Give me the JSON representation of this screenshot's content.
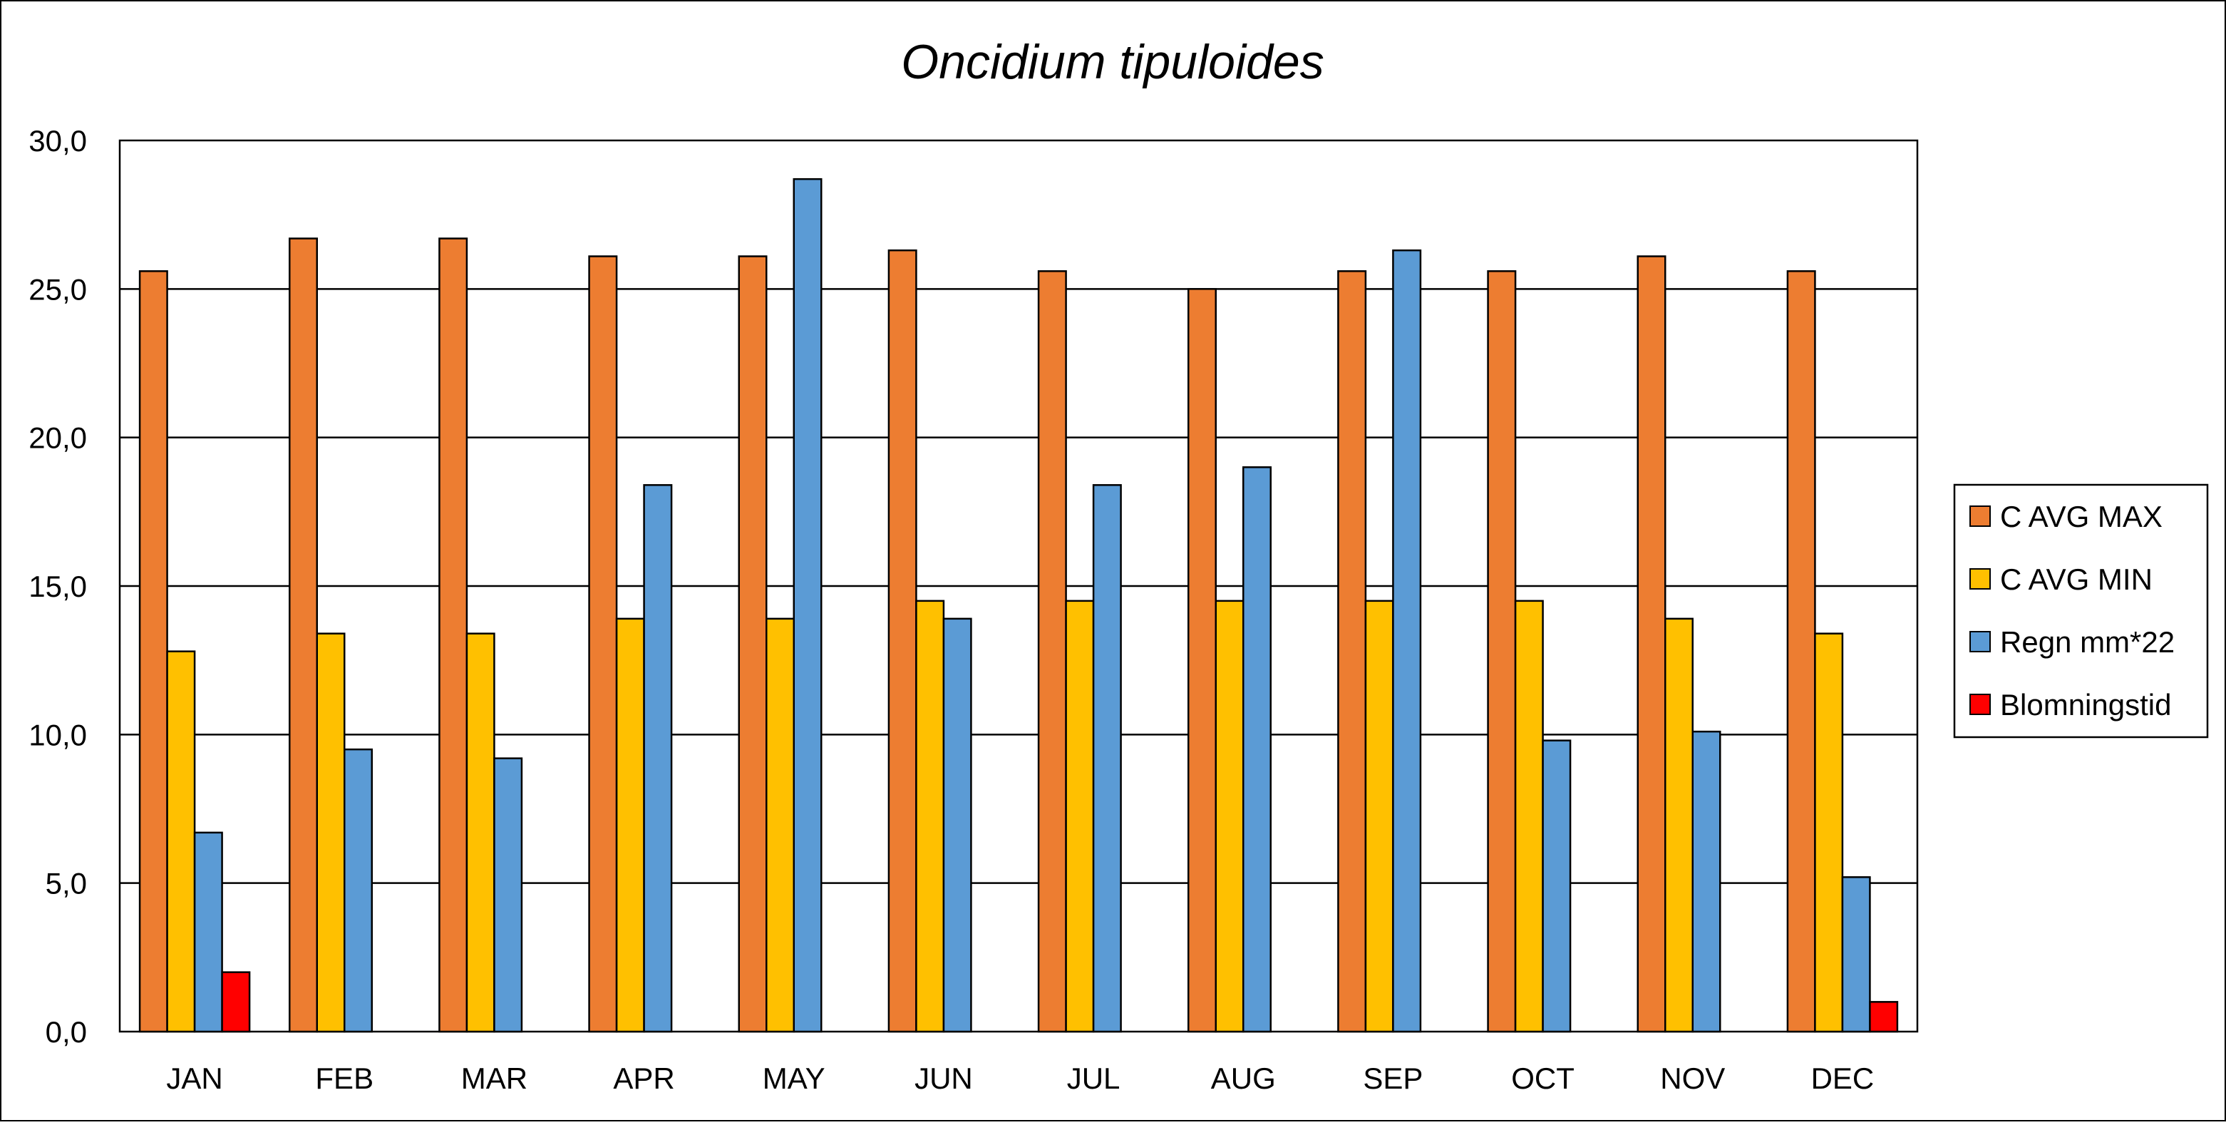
{
  "chart_data": {
    "type": "bar",
    "title": "Oncidium tipuloides",
    "xlabel": "",
    "ylabel": "",
    "categories": [
      "JAN",
      "FEB",
      "MAR",
      "APR",
      "MAY",
      "JUN",
      "JUL",
      "AUG",
      "SEP",
      "OCT",
      "NOV",
      "DEC"
    ],
    "ylim": [
      0,
      30
    ],
    "yticks": [
      "0,0",
      "5,0",
      "10,0",
      "15,0",
      "20,0",
      "25,0",
      "30,0"
    ],
    "grid": true,
    "legend_position": "right",
    "series": [
      {
        "name": "C AVG MAX",
        "color": "#ED7D31",
        "values": [
          25.6,
          26.7,
          26.7,
          26.1,
          26.1,
          26.3,
          25.6,
          25.0,
          25.6,
          25.6,
          26.1,
          25.6
        ]
      },
      {
        "name": "C AVG MIN",
        "color": "#FFC000",
        "values": [
          12.8,
          13.4,
          13.4,
          13.9,
          13.9,
          14.5,
          14.5,
          14.5,
          14.5,
          14.5,
          13.9,
          13.4
        ]
      },
      {
        "name": "Regn mm*22",
        "color": "#5B9BD5",
        "values": [
          6.7,
          9.5,
          9.2,
          18.4,
          28.7,
          13.9,
          18.4,
          19.0,
          26.3,
          9.8,
          10.1,
          5.2
        ]
      },
      {
        "name": "Blomningstid",
        "color": "#FF0000",
        "values": [
          2.0,
          0,
          0,
          0,
          0,
          0,
          0,
          0,
          0,
          0,
          0,
          1.0
        ]
      }
    ]
  }
}
